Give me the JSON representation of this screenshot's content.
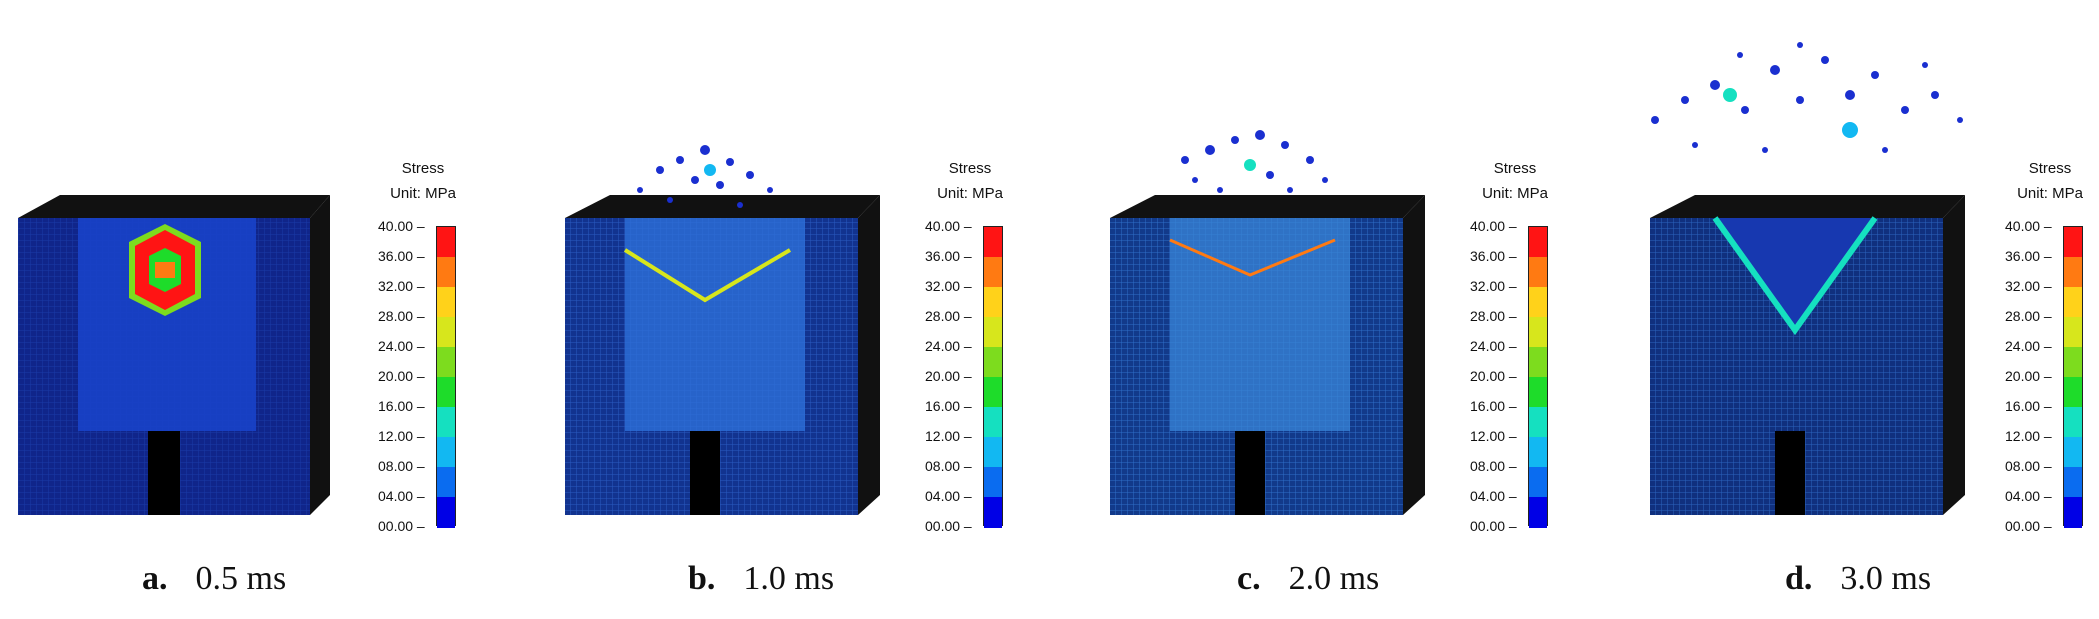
{
  "colors": [
    "#0000e6",
    "#0a6cf0",
    "#12b8f2",
    "#15e0c0",
    "#1edc2a",
    "#7ddc1e",
    "#d7e61c",
    "#ffd21a",
    "#ff7a12",
    "#ff1414"
  ],
  "legend": {
    "title": "Stress",
    "unit": "Unit: MPa",
    "ticks": [
      "40.00",
      "36.00",
      "32.00",
      "28.00",
      "24.00",
      "20.00",
      "16.00",
      "12.00",
      "08.00",
      "04.00",
      "00.00"
    ]
  },
  "panels": [
    {
      "letter": "a.",
      "time": "0.5 ms"
    },
    {
      "letter": "b.",
      "time": "1.0 ms"
    },
    {
      "letter": "c.",
      "time": "2.0 ms"
    },
    {
      "letter": "d.",
      "time": "3.0 ms"
    }
  ]
}
